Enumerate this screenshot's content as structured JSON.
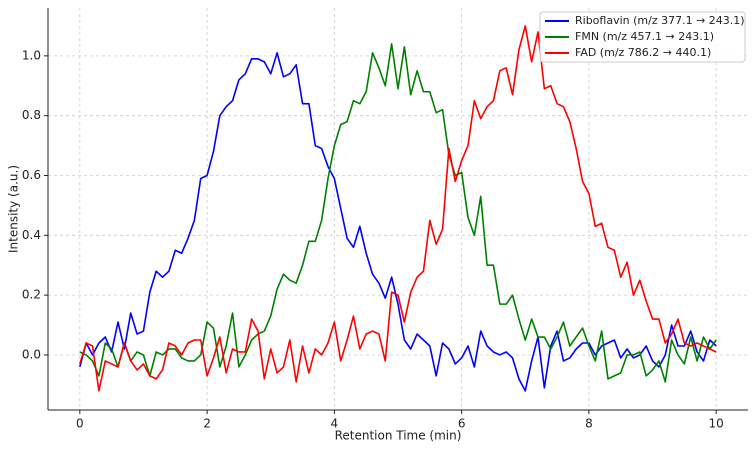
{
  "chart_data": {
    "type": "line",
    "xlabel": "Retention Time (min)",
    "ylabel": "Intensity (a.u.)",
    "x": [
      0,
      0.1,
      0.2,
      0.3,
      0.4,
      0.5,
      0.6,
      0.7,
      0.8,
      0.9,
      1,
      1.1,
      1.2,
      1.3,
      1.4,
      1.5,
      1.6,
      1.7,
      1.8,
      1.9,
      2,
      2.1,
      2.2,
      2.3,
      2.4,
      2.5,
      2.6,
      2.7,
      2.8,
      2.9,
      3,
      3.1,
      3.2,
      3.3,
      3.4,
      3.5,
      3.6,
      3.7,
      3.8,
      3.9,
      4,
      4.1,
      4.2,
      4.3,
      4.4,
      4.5,
      4.6,
      4.7,
      4.8,
      4.9,
      5,
      5.1,
      5.2,
      5.3,
      5.4,
      5.5,
      5.6,
      5.7,
      5.8,
      5.9,
      6,
      6.1,
      6.2,
      6.3,
      6.4,
      6.5,
      6.6,
      6.7,
      6.8,
      6.9,
      7,
      7.1,
      7.2,
      7.3,
      7.4,
      7.5,
      7.6,
      7.7,
      7.8,
      7.9,
      8,
      8.1,
      8.2,
      8.3,
      8.4,
      8.5,
      8.6,
      8.7,
      8.8,
      8.9,
      9,
      9.1,
      9.2,
      9.3,
      9.4,
      9.5,
      9.6,
      9.7,
      9.8,
      9.9,
      10
    ],
    "series": [
      {
        "name": "Riboflavin (m/z 377.1 → 243.1)",
        "color": "#0000ff",
        "values": [
          -0.04,
          0.04,
          0.0,
          0.04,
          0.06,
          0.01,
          0.11,
          0.02,
          0.14,
          0.07,
          0.08,
          0.21,
          0.28,
          0.26,
          0.28,
          0.35,
          0.34,
          0.39,
          0.45,
          0.59,
          0.6,
          0.68,
          0.8,
          0.83,
          0.85,
          0.92,
          0.94,
          0.99,
          0.99,
          0.98,
          0.94,
          1.01,
          0.93,
          0.94,
          0.97,
          0.84,
          0.84,
          0.7,
          0.69,
          0.63,
          0.59,
          0.49,
          0.39,
          0.36,
          0.43,
          0.34,
          0.27,
          0.24,
          0.19,
          0.26,
          0.17,
          0.05,
          0.02,
          0.07,
          0.05,
          0.03,
          -0.07,
          0.04,
          0.02,
          -0.03,
          -0.01,
          0.03,
          -0.04,
          0.08,
          0.03,
          0.01,
          0.0,
          0.01,
          -0.01,
          -0.08,
          -0.12,
          -0.02,
          0.06,
          -0.11,
          0.03,
          0.08,
          -0.02,
          -0.01,
          0.02,
          0.04,
          0.04,
          0.0,
          0.03,
          0.04,
          0.05,
          -0.01,
          0.02,
          -0.01,
          0.0,
          0.03,
          -0.02,
          -0.04,
          0.0,
          0.1,
          0.03,
          0.03,
          0.08,
          0.01,
          -0.02,
          0.05,
          0.03
        ]
      },
      {
        "name": "FMN (m/z 457.1 → 243.1)",
        "color": "#008000",
        "values": [
          0.01,
          0.0,
          -0.02,
          -0.07,
          0.04,
          0.02,
          -0.04,
          0.04,
          -0.02,
          0.01,
          0.0,
          -0.07,
          0.01,
          0.0,
          0.02,
          0.02,
          -0.01,
          -0.02,
          -0.02,
          0.0,
          0.11,
          0.09,
          -0.04,
          0.03,
          0.14,
          -0.04,
          0.0,
          0.05,
          0.07,
          0.08,
          0.13,
          0.22,
          0.27,
          0.25,
          0.24,
          0.3,
          0.38,
          0.38,
          0.45,
          0.59,
          0.7,
          0.77,
          0.78,
          0.85,
          0.84,
          0.88,
          1.01,
          0.96,
          0.9,
          1.04,
          0.89,
          1.03,
          0.87,
          0.95,
          0.88,
          0.88,
          0.81,
          0.82,
          0.67,
          0.6,
          0.61,
          0.46,
          0.4,
          0.53,
          0.3,
          0.3,
          0.17,
          0.17,
          0.2,
          0.12,
          0.05,
          0.12,
          0.06,
          0.06,
          0.02,
          0.06,
          0.11,
          0.03,
          0.06,
          0.09,
          0.03,
          -0.02,
          0.08,
          -0.08,
          -0.07,
          -0.06,
          0.0,
          0.0,
          0.01,
          -0.07,
          -0.05,
          -0.02,
          -0.09,
          0.05,
          0.0,
          -0.03,
          0.06,
          -0.02,
          0.06,
          0.02,
          0.05
        ]
      },
      {
        "name": "FAD (m/z 786.2 → 440.1)",
        "color": "#ff0000",
        "values": [
          -0.03,
          0.04,
          0.03,
          -0.12,
          -0.02,
          -0.03,
          -0.04,
          0.04,
          -0.02,
          -0.05,
          -0.03,
          -0.07,
          -0.08,
          -0.05,
          0.04,
          0.03,
          0.0,
          0.04,
          0.05,
          0.05,
          -0.07,
          -0.01,
          0.06,
          -0.06,
          0.02,
          0.01,
          0.01,
          0.12,
          0.08,
          -0.08,
          0.02,
          -0.06,
          -0.04,
          0.05,
          -0.09,
          0.03,
          -0.06,
          0.02,
          0.0,
          0.04,
          0.11,
          -0.02,
          0.05,
          0.13,
          0.02,
          0.07,
          0.08,
          0.07,
          -0.02,
          0.21,
          0.2,
          0.11,
          0.21,
          0.26,
          0.28,
          0.45,
          0.37,
          0.42,
          0.69,
          0.58,
          0.65,
          0.7,
          0.85,
          0.79,
          0.83,
          0.85,
          0.95,
          0.96,
          0.87,
          1.02,
          1.1,
          0.98,
          1.08,
          0.89,
          0.9,
          0.84,
          0.83,
          0.78,
          0.69,
          0.58,
          0.54,
          0.43,
          0.44,
          0.36,
          0.35,
          0.26,
          0.31,
          0.2,
          0.25,
          0.18,
          0.12,
          0.12,
          0.04,
          0.07,
          0.12,
          0.04,
          0.03,
          0.04,
          0.03,
          0.02,
          0.01
        ]
      }
    ],
    "xlim": [
      -0.5,
      10.5
    ],
    "ylim": [
      -0.184,
      1.16
    ],
    "xticks": [
      0,
      2,
      4,
      6,
      8,
      10
    ],
    "yticks": [
      {
        "value": 0,
        "label": "0.0"
      },
      0.2,
      0.4,
      0.6,
      0.8,
      {
        "value": 1,
        "label": "1.0"
      }
    ],
    "grid": true,
    "legend": "upper right"
  }
}
